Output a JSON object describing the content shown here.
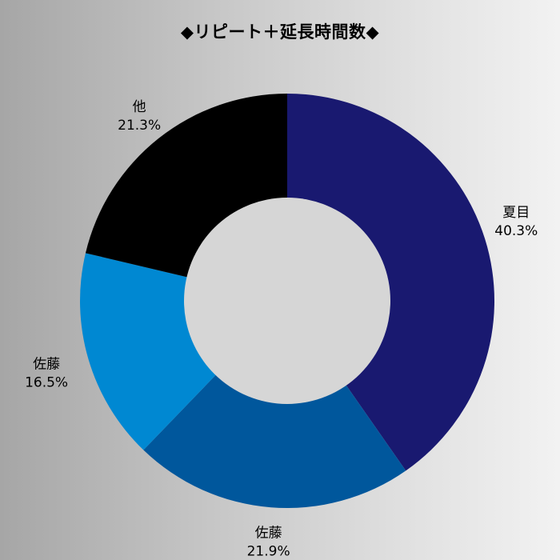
{
  "chart_data": {
    "type": "pie",
    "title": "◆リピート＋延長時間数◆",
    "slices": [
      {
        "label": "夏目",
        "value": 40.3,
        "value_label": "40.3%",
        "color": "#191970"
      },
      {
        "label": "佐藤",
        "value": 21.9,
        "value_label": "21.9%",
        "color": "#00579c"
      },
      {
        "label": "佐藤",
        "value": 16.5,
        "value_label": "16.5%",
        "color": "#0088d2"
      },
      {
        "label": "他",
        "value": 21.3,
        "value_label": "21.3%",
        "color": "#000000"
      }
    ],
    "center_color": "#d6d6d6",
    "start": "top",
    "direction": "clockwise"
  }
}
